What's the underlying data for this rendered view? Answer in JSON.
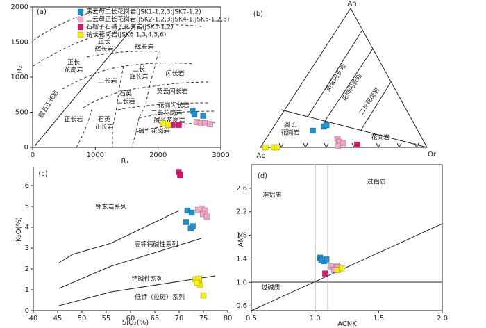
{
  "chart_data": [
    {
      "type": "scatter",
      "label": "(a)",
      "xlabel": "R₁",
      "ylabel": "R₂",
      "xlim": [
        0,
        3000
      ],
      "ylim": [
        0,
        2000
      ],
      "xticks": [
        0,
        1000,
        2000,
        3000
      ],
      "yticks": [
        0,
        500,
        1000,
        1500,
        2000
      ],
      "fields": [
        [
          "正长",
          "辉长岩"
        ],
        [
          "辉长岩"
        ],
        [
          "正长",
          "花岗岩"
        ],
        [
          "二长",
          "辉长岩"
        ],
        [
          "闪长岩"
        ],
        [
          "二长岩"
        ],
        [
          "石英",
          "二长岩"
        ],
        [
          "英云闪长岩"
        ],
        [
          "霞石正长岩"
        ],
        [
          "花岗闪长岩"
        ],
        [
          "二长花岗岩"
        ],
        [
          "碱长花岗岩"
        ],
        [
          "正长岩"
        ],
        [
          "石英",
          "正长岩"
        ],
        [
          "碱性花岗岩"
        ]
      ],
      "series": [
        {
          "name": "黑云母二长花岗岩(JSK1-1,2,3;JSK7-1,2)",
          "color": "#1b8fd2",
          "x": [
            2550,
            2580,
            2720
          ],
          "values": [
            520,
            470,
            450
          ]
        },
        {
          "name": "二云母正长花岗岩(JSK2-1,2,3;JSK4-1;JSK5-1,2,3)",
          "color": "#f2a8c9",
          "x": [
            2620,
            2680,
            2750,
            2830
          ],
          "values": [
            360,
            340,
            345,
            330
          ]
        },
        {
          "name": "石榴子石碱长花岗岩(JSK3-1,2)",
          "color": "#d6176f",
          "x": [
            2230,
            2330
          ],
          "values": [
            320,
            320
          ]
        },
        {
          "name": "钠长花岗岩(JSK6-1,3,4,5,6)",
          "color": "#f5f000",
          "x": [
            2080,
            2160
          ],
          "values": [
            340,
            320
          ]
        }
      ]
    },
    {
      "type": "ternary",
      "label": "(b)",
      "vertices": [
        "An",
        "Ab",
        "Or"
      ],
      "fields": [
        [
          "英云闪长岩"
        ],
        [
          "花岗闪长岩"
        ],
        [
          "二长花岗岩"
        ],
        [
          "奥长",
          "花岗岩"
        ],
        [
          "花岗岩"
        ]
      ],
      "series": [
        {
          "color": "#1b8fd2",
          "values": [
            [
              12,
              63,
              25
            ],
            [
              15,
              55,
              30
            ],
            [
              16,
              53,
              31
            ]
          ]
        },
        {
          "color": "#f2a8c9",
          "values": [
            [
              6,
              51,
              43
            ],
            [
              4,
              51,
              45
            ],
            [
              1,
              53,
              46
            ],
            [
              3,
              49,
              48
            ]
          ]
        },
        {
          "color": "#d6176f",
          "values": [
            [
              2,
              41,
              57
            ]
          ]
        },
        {
          "color": "#f5f000",
          "values": [
            [
              0,
              97,
              3
            ],
            [
              0,
              92,
              8
            ],
            [
              0,
              90,
              10
            ]
          ]
        }
      ]
    },
    {
      "type": "scatter",
      "label": "(c)",
      "xlabel": "SiO₂(%)",
      "ylabel": "K₂O(%)",
      "xlim": [
        40,
        80
      ],
      "ylim": [
        0,
        6.9
      ],
      "xticks": [
        40,
        45,
        50,
        55,
        60,
        65,
        70,
        75,
        80
      ],
      "yticks": [
        0,
        1,
        2,
        3,
        4,
        5,
        6
      ],
      "fields": [
        [
          "钾玄岩系列"
        ],
        [
          "高钾钙碱性系列"
        ],
        [
          "钙碱性系列"
        ],
        [
          "低钾（拉斑）系列"
        ]
      ],
      "series": [
        {
          "color": "#1b8fd2",
          "x": [
            71.7,
            72.6,
            71.4,
            72.4,
            72.8
          ],
          "values": [
            4.8,
            4.7,
            4.25,
            3.95,
            4.05
          ]
        },
        {
          "color": "#f2a8c9",
          "x": [
            73.9,
            74.6,
            75.3,
            74.9,
            75.7
          ],
          "values": [
            4.83,
            4.9,
            4.8,
            4.63,
            4.5
          ]
        },
        {
          "color": "#d6176f",
          "x": [
            69.9,
            70.2
          ],
          "values": [
            6.65,
            6.5
          ]
        },
        {
          "color": "#f5f000",
          "x": [
            73.4,
            74.1,
            74.3,
            73.7,
            75.0
          ],
          "values": [
            1.5,
            1.53,
            1.23,
            1.33,
            0.73
          ]
        }
      ]
    },
    {
      "type": "scatter",
      "label": "(d)",
      "xlabel": "ACNK",
      "ylabel": "ANK",
      "xlim": [
        0.5,
        2.0
      ],
      "ylim": [
        0.52,
        3.0
      ],
      "xticks": [
        0.5,
        {
          "value": 1,
          "label": "1.0"
        },
        1.5,
        {
          "value": 2,
          "label": "2.0"
        }
      ],
      "yticks": [
        0.6,
        {
          "value": 1,
          "label": "1.0"
        },
        1.4,
        1.8,
        2.2,
        2.6
      ],
      "fields": [
        [
          "准铝质"
        ],
        [
          "过铝质"
        ],
        [
          "过碱质"
        ]
      ],
      "series": [
        {
          "color": "#1b8fd2",
          "x": [
            1.04,
            1.07,
            1.09,
            1.05
          ],
          "values": [
            1.42,
            1.36,
            1.39,
            1.38
          ]
        },
        {
          "color": "#f2a8c9",
          "x": [
            1.13,
            1.17,
            1.18,
            1.15
          ],
          "values": [
            1.27,
            1.28,
            1.26,
            1.21
          ]
        },
        {
          "color": "#d6176f",
          "x": [
            1.08
          ],
          "values": [
            1.15
          ]
        },
        {
          "color": "#f5f000",
          "x": [
            1.18,
            1.21
          ],
          "values": [
            1.21,
            1.24
          ]
        }
      ]
    }
  ]
}
